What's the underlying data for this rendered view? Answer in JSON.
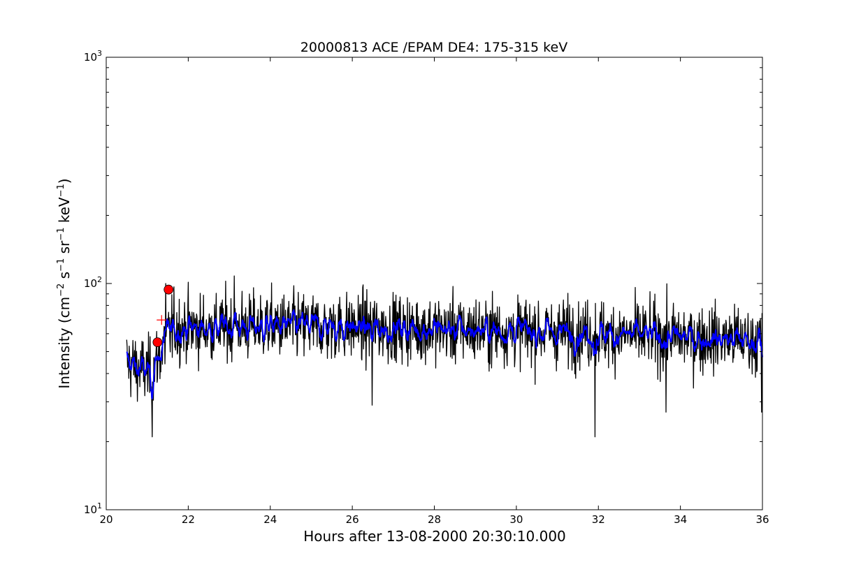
{
  "chart_data": {
    "type": "line",
    "title": "20000813 ACE /EPAM DE4: 175-315 keV",
    "xlabel": "Hours after 13-08-2000 20:30:10.000",
    "ylabel": {
      "prefix": "Intensity (cm",
      "sup1": "−2",
      "mid1": " s",
      "sup2": "−1",
      "mid2": " sr",
      "sup3": "−1",
      "mid3": " keV",
      "sup4": "−1",
      "suffix": ")"
    },
    "xlim": [
      20,
      36
    ],
    "ylim": [
      10,
      1000
    ],
    "yscale": "log",
    "xticks": [
      20,
      22,
      24,
      26,
      28,
      30,
      32,
      34,
      36
    ],
    "xtick_labels": [
      "20",
      "22",
      "24",
      "26",
      "28",
      "30",
      "32",
      "34",
      "36"
    ],
    "yticks": [
      10,
      100,
      1000
    ],
    "ytick_labels": [
      {
        "base": "10",
        "exp": "1"
      },
      {
        "base": "10",
        "exp": "2"
      },
      {
        "base": "10",
        "exp": "3"
      }
    ],
    "grid": false,
    "series": [
      {
        "style": "raw",
        "color": "#000000",
        "x_start": 20.5,
        "x_end": 36.0,
        "n_points": 1550,
        "level_profile": [
          {
            "x": 20.5,
            "y": 45
          },
          {
            "x": 20.8,
            "y": 42
          },
          {
            "x": 21.1,
            "y": 40
          },
          {
            "x": 21.3,
            "y": 48
          },
          {
            "x": 21.6,
            "y": 63
          },
          {
            "x": 24.0,
            "y": 65
          },
          {
            "x": 28.0,
            "y": 63
          },
          {
            "x": 31.0,
            "y": 61
          },
          {
            "x": 33.0,
            "y": 59
          },
          {
            "x": 36.0,
            "y": 56
          }
        ],
        "spikes": [
          {
            "x": 21.12,
            "y": 21
          },
          {
            "x": 31.92,
            "y": 21
          },
          {
            "x": 33.65,
            "y": 27
          },
          {
            "x": 35.98,
            "y": 27
          },
          {
            "x": 26.48,
            "y": 29
          },
          {
            "x": 23.12,
            "y": 108
          },
          {
            "x": 21.45,
            "y": 100
          }
        ]
      },
      {
        "style": "smoothed",
        "color": "#0000ff",
        "x_start": 20.5,
        "x_end": 36.0
      }
    ],
    "markers": [
      {
        "type": "circle",
        "x": 21.25,
        "y": 55,
        "color": "#ff0000"
      },
      {
        "type": "circle",
        "x": 21.52,
        "y": 94,
        "color": "#ff0000"
      },
      {
        "type": "plus",
        "x": 21.35,
        "y": 69,
        "color": "#ff0000"
      }
    ]
  }
}
